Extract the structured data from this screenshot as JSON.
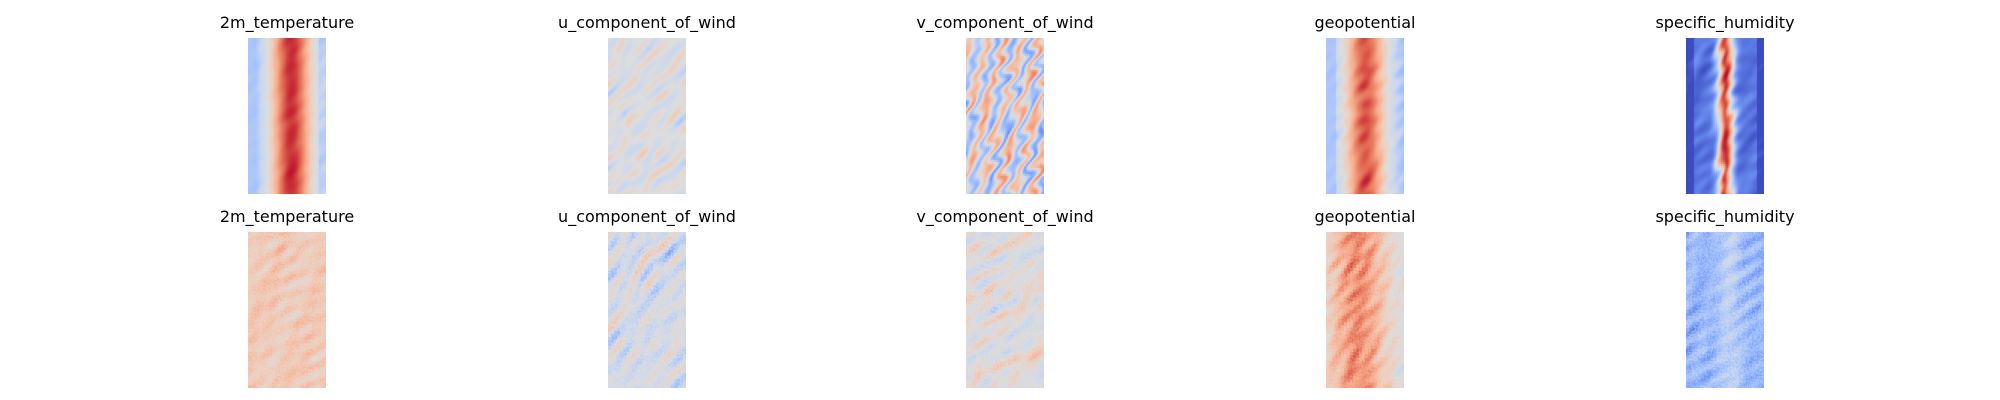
{
  "figure": {
    "colormap": "coolwarm",
    "colormap_stops": [
      "#3b4cc0",
      "#6788ee",
      "#9abbff",
      "#c9d7f0",
      "#dddddd",
      "#f2cbb7",
      "#f7a889",
      "#e26952",
      "#b40426"
    ],
    "rows": [
      {
        "panels": [
          {
            "title": "2m_temperature",
            "pattern": "temp-smooth"
          },
          {
            "title": "u_component_of_wind",
            "pattern": "uwind-smooth"
          },
          {
            "title": "v_component_of_wind",
            "pattern": "vwind-smooth"
          },
          {
            "title": "geopotential",
            "pattern": "geo-smooth"
          },
          {
            "title": "specific_humidity",
            "pattern": "humid-smooth"
          }
        ]
      },
      {
        "panels": [
          {
            "title": "2m_temperature",
            "pattern": "temp-noisy"
          },
          {
            "title": "u_component_of_wind",
            "pattern": "uwind-noisy"
          },
          {
            "title": "v_component_of_wind",
            "pattern": "vwind-noisy"
          },
          {
            "title": "geopotential",
            "pattern": "geo-noisy"
          },
          {
            "title": "specific_humidity",
            "pattern": "humid-noisy"
          }
        ]
      }
    ]
  }
}
